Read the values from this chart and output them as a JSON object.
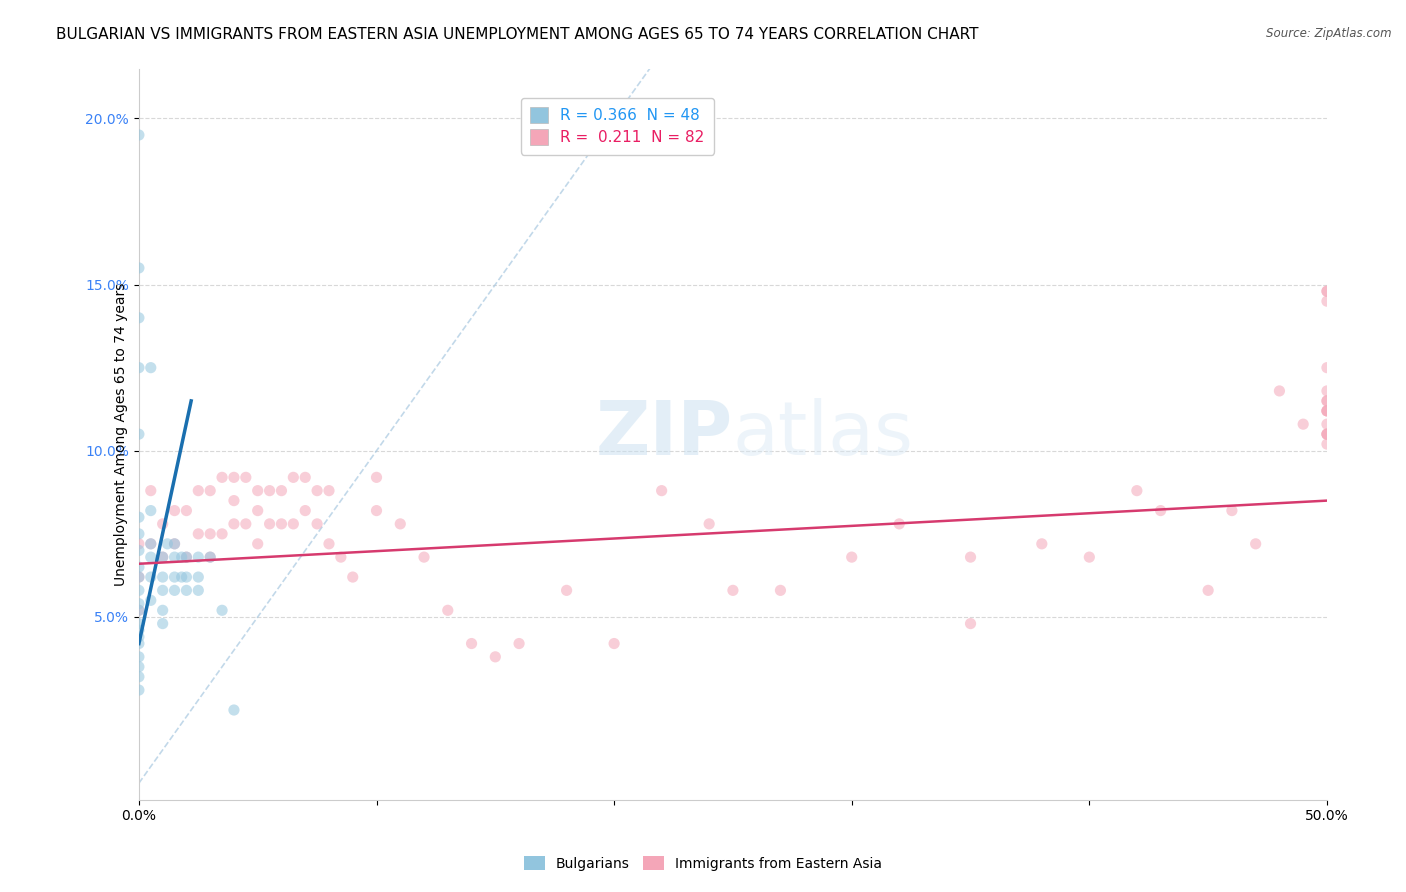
{
  "title": "BULGARIAN VS IMMIGRANTS FROM EASTERN ASIA UNEMPLOYMENT AMONG AGES 65 TO 74 YEARS CORRELATION CHART",
  "source": "Source: ZipAtlas.com",
  "ylabel": "Unemployment Among Ages 65 to 74 years",
  "watermark_zip": "ZIP",
  "watermark_atlas": "atlas",
  "legend_entries": [
    {
      "label_r": "R = ",
      "val_r": "0.366",
      "label_n": "  N = ",
      "val_n": "48",
      "color": "#92c5de"
    },
    {
      "label_r": "R =  ",
      "val_r": "0.211",
      "label_n": "  N = ",
      "val_n": "82",
      "color": "#f4a6b8"
    }
  ],
  "legend_labels_bottom": [
    "Bulgarians",
    "Immigrants from Eastern Asia"
  ],
  "xlim": [
    0.0,
    0.5
  ],
  "ylim": [
    -0.005,
    0.215
  ],
  "yticks": [
    0.05,
    0.1,
    0.15,
    0.2
  ],
  "ytick_labels": [
    "5.0%",
    "10.0%",
    "15.0%",
    "20.0%"
  ],
  "xticks": [
    0.0,
    0.1,
    0.2,
    0.3,
    0.4,
    0.5
  ],
  "xtick_labels": [
    "0.0%",
    "",
    "",
    "",
    "",
    "50.0%"
  ],
  "blue_scatter_x": [
    0.0,
    0.0,
    0.0,
    0.0,
    0.0,
    0.0,
    0.0,
    0.0,
    0.0,
    0.0,
    0.0,
    0.0,
    0.0,
    0.0,
    0.0,
    0.0,
    0.0,
    0.0,
    0.0,
    0.0,
    0.0,
    0.005,
    0.005,
    0.005,
    0.005,
    0.005,
    0.005,
    0.01,
    0.01,
    0.01,
    0.01,
    0.01,
    0.012,
    0.015,
    0.015,
    0.015,
    0.015,
    0.018,
    0.018,
    0.02,
    0.02,
    0.02,
    0.025,
    0.025,
    0.025,
    0.03,
    0.035,
    0.04
  ],
  "blue_scatter_y": [
    0.195,
    0.155,
    0.14,
    0.125,
    0.105,
    0.08,
    0.075,
    0.07,
    0.065,
    0.062,
    0.058,
    0.054,
    0.052,
    0.048,
    0.046,
    0.044,
    0.042,
    0.038,
    0.035,
    0.032,
    0.028,
    0.125,
    0.082,
    0.072,
    0.068,
    0.062,
    0.055,
    0.068,
    0.062,
    0.058,
    0.052,
    0.048,
    0.072,
    0.072,
    0.062,
    0.058,
    0.068,
    0.068,
    0.062,
    0.068,
    0.062,
    0.058,
    0.068,
    0.062,
    0.058,
    0.068,
    0.052,
    0.022
  ],
  "pink_scatter_x": [
    0.0,
    0.0,
    0.0,
    0.005,
    0.005,
    0.01,
    0.01,
    0.015,
    0.015,
    0.02,
    0.02,
    0.025,
    0.025,
    0.03,
    0.03,
    0.03,
    0.035,
    0.035,
    0.04,
    0.04,
    0.04,
    0.045,
    0.045,
    0.05,
    0.05,
    0.05,
    0.055,
    0.055,
    0.06,
    0.06,
    0.065,
    0.065,
    0.07,
    0.07,
    0.075,
    0.075,
    0.08,
    0.08,
    0.085,
    0.09,
    0.1,
    0.1,
    0.11,
    0.12,
    0.13,
    0.14,
    0.15,
    0.16,
    0.18,
    0.2,
    0.22,
    0.24,
    0.25,
    0.27,
    0.3,
    0.32,
    0.35,
    0.35,
    0.38,
    0.4,
    0.42,
    0.43,
    0.45,
    0.46,
    0.47,
    0.48,
    0.49,
    0.5,
    0.5,
    0.5,
    0.5,
    0.5,
    0.5,
    0.5,
    0.5,
    0.5,
    0.5,
    0.5,
    0.5,
    0.5,
    0.5,
    0.5
  ],
  "pink_scatter_y": [
    0.072,
    0.062,
    0.052,
    0.088,
    0.072,
    0.078,
    0.068,
    0.082,
    0.072,
    0.082,
    0.068,
    0.088,
    0.075,
    0.088,
    0.075,
    0.068,
    0.092,
    0.075,
    0.092,
    0.085,
    0.078,
    0.092,
    0.078,
    0.088,
    0.082,
    0.072,
    0.088,
    0.078,
    0.088,
    0.078,
    0.092,
    0.078,
    0.092,
    0.082,
    0.088,
    0.078,
    0.088,
    0.072,
    0.068,
    0.062,
    0.092,
    0.082,
    0.078,
    0.068,
    0.052,
    0.042,
    0.038,
    0.042,
    0.058,
    0.042,
    0.088,
    0.078,
    0.058,
    0.058,
    0.068,
    0.078,
    0.068,
    0.048,
    0.072,
    0.068,
    0.088,
    0.082,
    0.058,
    0.082,
    0.072,
    0.118,
    0.108,
    0.148,
    0.118,
    0.148,
    0.112,
    0.125,
    0.115,
    0.105,
    0.112,
    0.102,
    0.105,
    0.115,
    0.108,
    0.145,
    0.112,
    0.105
  ],
  "blue_color": "#92c5de",
  "pink_color": "#f4a6b8",
  "blue_line_color": "#1a6faf",
  "pink_line_color": "#d63a6e",
  "dashed_line_color": "#a8c8e0",
  "grid_color": "#d8d8d8",
  "background_color": "#ffffff",
  "title_fontsize": 11,
  "axis_fontsize": 10,
  "tick_color": "#3b82f6",
  "scatter_alpha": 0.55,
  "scatter_size": 65,
  "blue_line_x": [
    0.0,
    0.022
  ],
  "blue_line_y": [
    0.042,
    0.115
  ],
  "pink_line_x": [
    0.0,
    0.5
  ],
  "pink_line_y": [
    0.066,
    0.085
  ],
  "diag_line_x": [
    0.0,
    0.215
  ],
  "diag_line_y": [
    0.0,
    0.215
  ]
}
